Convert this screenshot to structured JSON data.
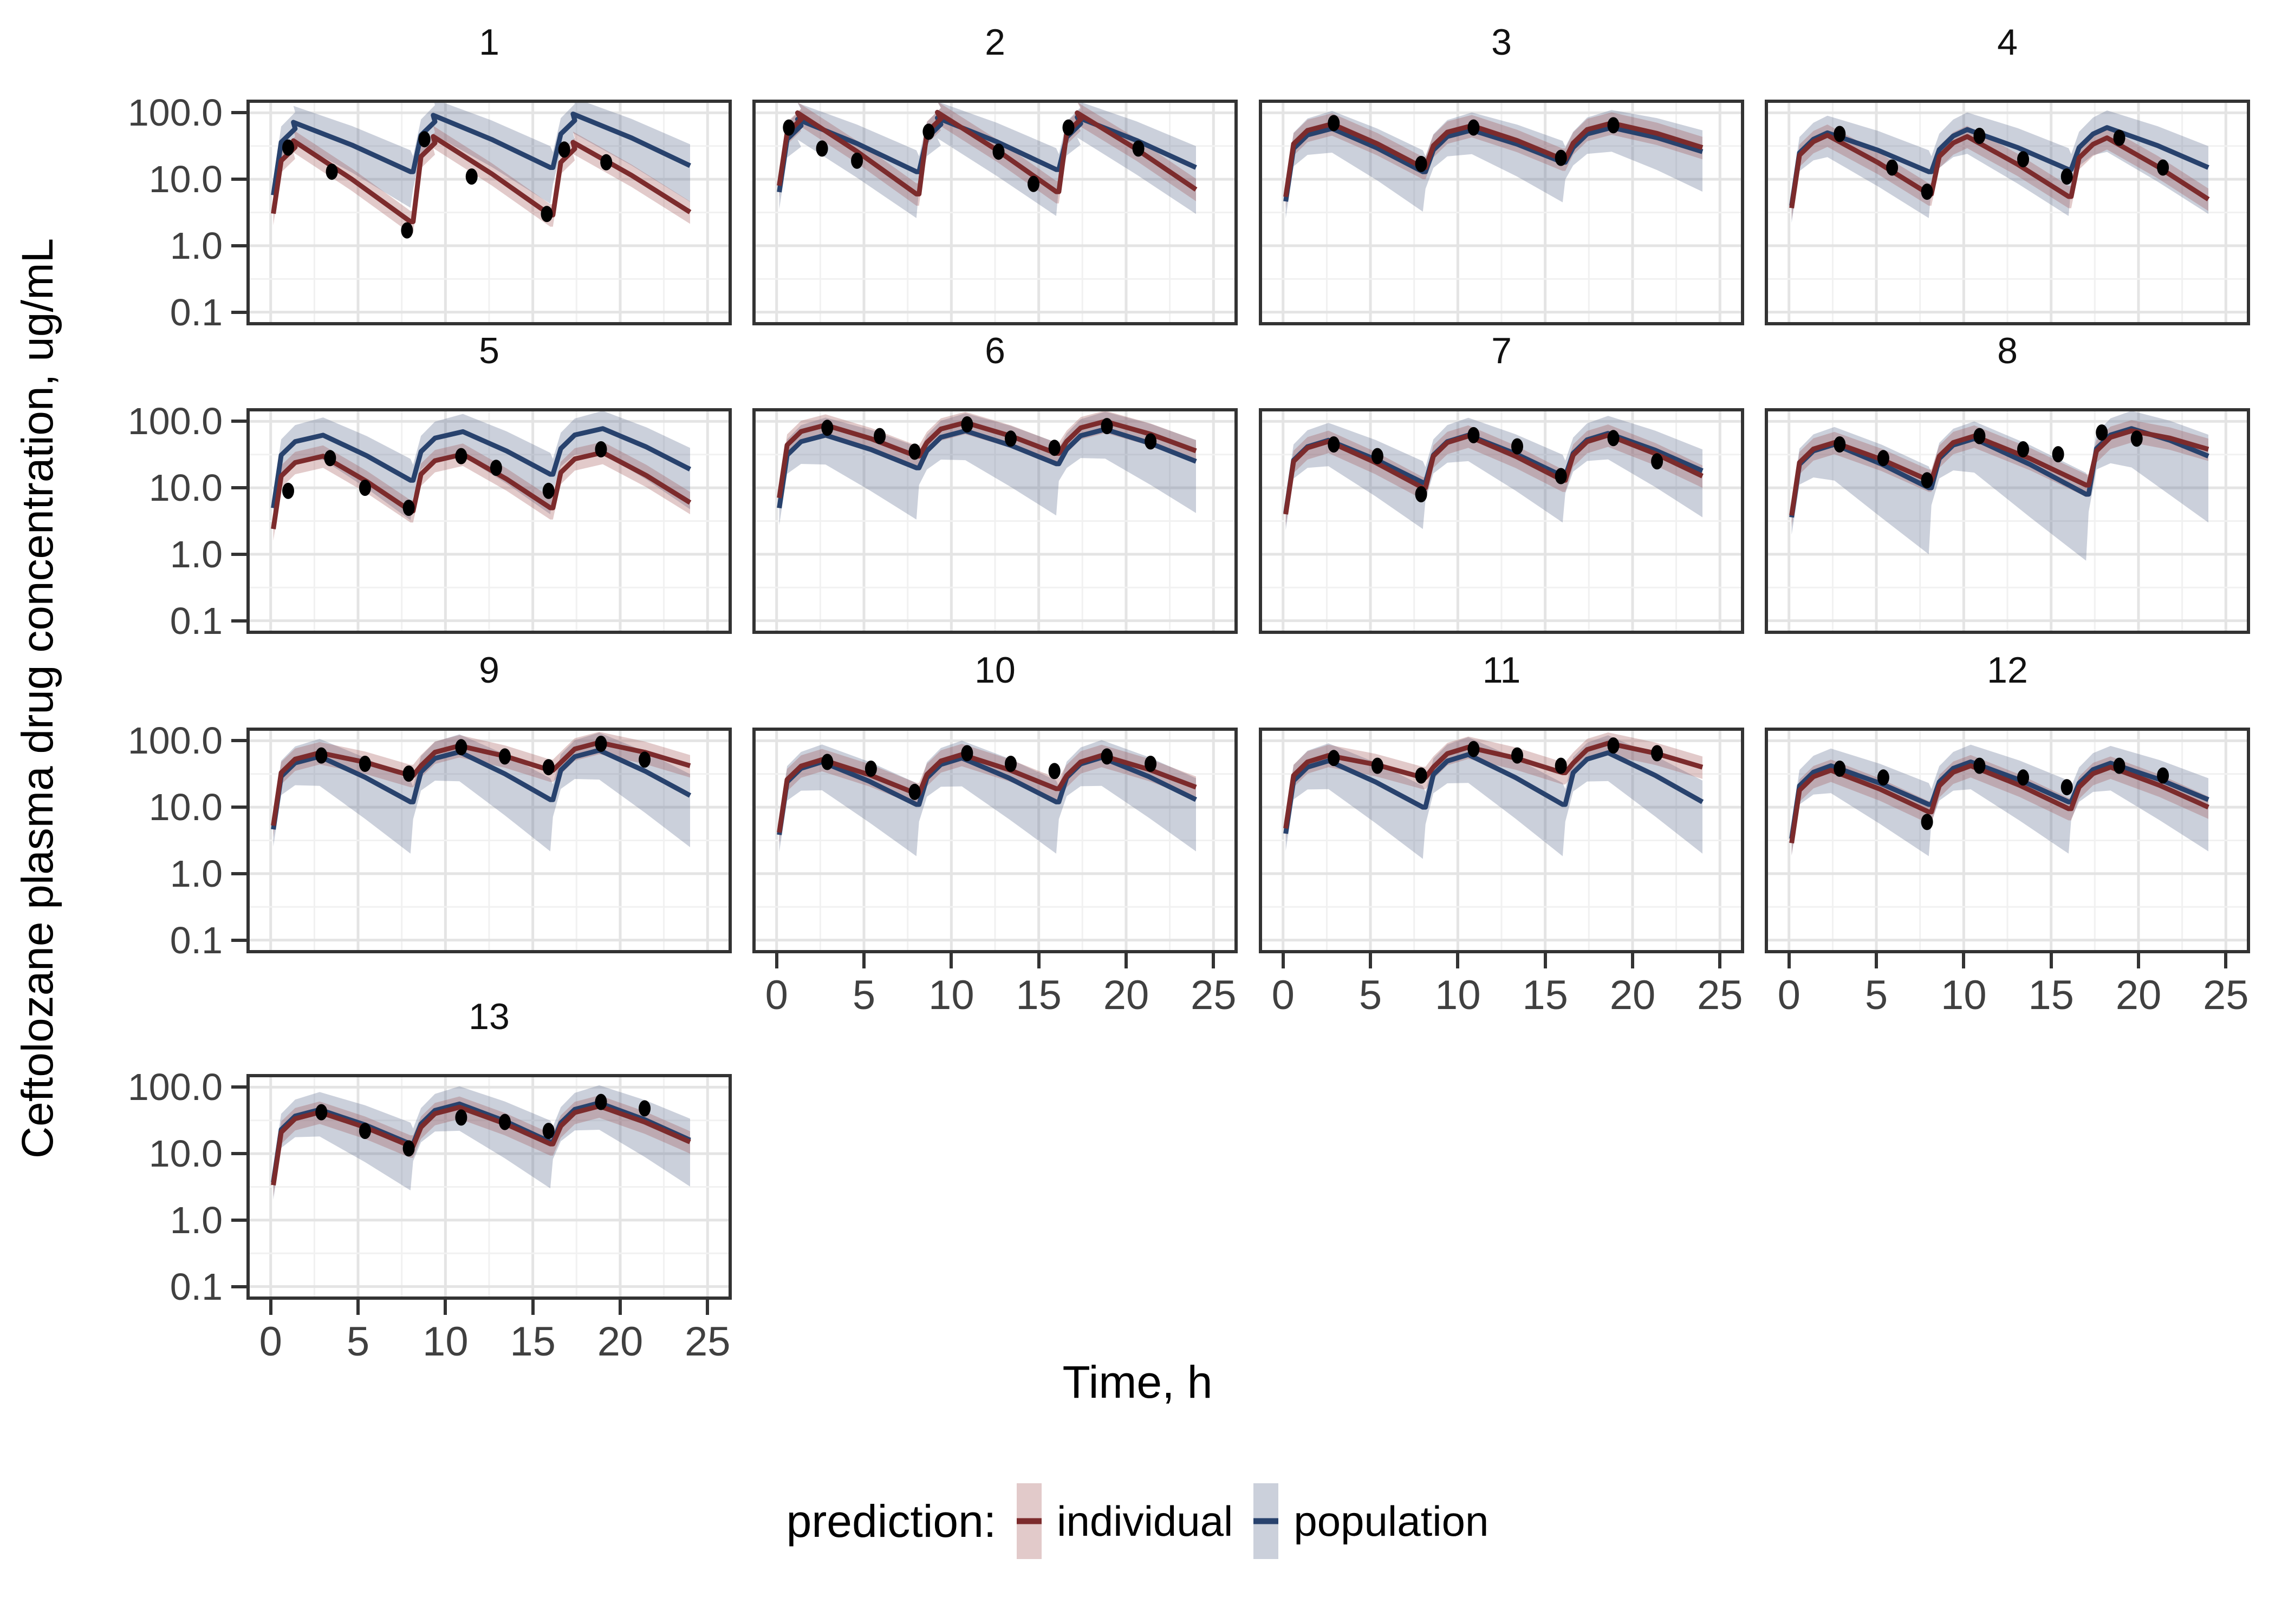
{
  "axes": {
    "x_label": "Time, h",
    "y_label": "Ceftolozane plasma drug concentration, ug/mL",
    "x_tick_values": [
      0,
      5,
      10,
      15,
      20,
      25
    ],
    "x_tick_labels": [
      "0",
      "5",
      "10",
      "15",
      "20",
      "25"
    ],
    "y_tick_values": [
      100,
      10,
      1,
      0.1
    ],
    "y_tick_labels": [
      "100.0",
      "10.0",
      "1.0",
      "0.1"
    ],
    "y_scale": "log10",
    "x_range": [
      0,
      25
    ],
    "y_range": [
      0.1,
      100
    ]
  },
  "legend": {
    "title": "prediction:",
    "items": [
      {
        "label": "individual",
        "line_color": "#7C2B2C",
        "fill_color": "#E4CCCC"
      },
      {
        "label": "population",
        "line_color": "#28426D",
        "fill_color": "#CBD2DD"
      }
    ]
  },
  "colors": {
    "individual_line": "#7C2B2C",
    "individual_fill": "rgba(159,80,80,0.30)",
    "population_line": "#28426D",
    "population_fill": "rgba(96,112,146,0.33)",
    "observation": "#000000",
    "grid_major": "#e4e4e4",
    "grid_minor": "#f1f1f1",
    "panel_border": "#333333",
    "tick_text": "#404040"
  },
  "chart_data": {
    "type": "line",
    "description": "Faceted pharmacokinetic profiles (log-scale concentration vs time) for 13 subjects; dark-red individual prediction with pink CI ribbon, navy population prediction with blue-gray CI ribbon, black dots are observations; repeated dosing causes sawtooth curves.",
    "grid": "on",
    "legend_position": "bottom",
    "facets": [
      {
        "id": "1",
        "doses": [
          0,
          8,
          16
        ],
        "t_end": 24,
        "peak_dt": 1.3,
        "individual": {
          "peaks": [
            38,
            44,
            36
          ],
          "troughs": [
            2.3,
            2.9,
            3.2
          ]
        },
        "population": {
          "peaks": [
            72,
            92,
            96
          ],
          "troughs": [
            13,
            15,
            16
          ],
          "lower_spread": 3.5
        },
        "observations": [
          [
            1,
            30
          ],
          [
            3.5,
            13
          ],
          [
            7.8,
            1.7
          ],
          [
            8.8,
            40
          ],
          [
            11.5,
            11
          ],
          [
            15.8,
            3
          ],
          [
            16.8,
            28
          ],
          [
            19.2,
            18
          ]
        ]
      },
      {
        "id": "2",
        "doses": [
          0,
          8,
          16
        ],
        "t_end": 24,
        "peak_dt": 1.2,
        "individual": {
          "peaks": [
            100,
            102,
            100
          ],
          "troughs": [
            6,
            6.5,
            7
          ]
        },
        "population": {
          "peaks": [
            80,
            84,
            86
          ],
          "troughs": [
            13,
            14,
            15
          ],
          "lower_spread": 5
        },
        "observations": [
          [
            0.7,
            60
          ],
          [
            2.6,
            29
          ],
          [
            4.6,
            19
          ],
          [
            8.7,
            52
          ],
          [
            12.7,
            26
          ],
          [
            14.7,
            8.5
          ],
          [
            16.7,
            60
          ],
          [
            20.7,
            29
          ]
        ]
      },
      {
        "id": "3",
        "doses": [
          0,
          8,
          16
        ],
        "t_end": 24,
        "peak_dt": 2.8,
        "individual": {
          "peaks": [
            68,
            64,
            70
          ],
          "troughs": [
            15,
            20,
            30
          ]
        },
        "population": {
          "peaks": [
            58,
            55,
            60
          ],
          "troughs": [
            13,
            18,
            26
          ],
          "lower_spread": 4
        },
        "observations": [
          [
            2.9,
            70
          ],
          [
            7.9,
            17
          ],
          [
            10.9,
            60
          ],
          [
            15.9,
            21
          ],
          [
            18.9,
            65
          ]
        ]
      },
      {
        "id": "4",
        "doses": [
          0,
          8,
          16
        ],
        "t_end": 24,
        "peak_dt": 2.2,
        "individual": {
          "peaks": [
            46,
            44,
            42
          ],
          "troughs": [
            6,
            5.5,
            5
          ]
        },
        "population": {
          "peaks": [
            50,
            56,
            60
          ],
          "troughs": [
            13,
            14,
            15
          ],
          "lower_spread": 5
        },
        "observations": [
          [
            2.9,
            48
          ],
          [
            5.9,
            15
          ],
          [
            7.9,
            6.5
          ],
          [
            10.9,
            45
          ],
          [
            13.4,
            20
          ],
          [
            15.9,
            11
          ],
          [
            18.9,
            42
          ],
          [
            21.4,
            15
          ]
        ]
      },
      {
        "id": "5",
        "doses": [
          0,
          8,
          16
        ],
        "t_end": 24,
        "peak_dt": 3.0,
        "individual": {
          "peaks": [
            30,
            32,
            34
          ],
          "troughs": [
            4.5,
            5,
            6
          ]
        },
        "population": {
          "peaks": [
            62,
            70,
            78
          ],
          "troughs": [
            13,
            16,
            19
          ],
          "lower_spread": 4
        },
        "observations": [
          [
            1,
            9
          ],
          [
            3.4,
            28
          ],
          [
            5.4,
            10
          ],
          [
            7.9,
            5
          ],
          [
            10.9,
            30
          ],
          [
            12.9,
            20
          ],
          [
            15.9,
            9
          ],
          [
            18.9,
            38
          ]
        ]
      },
      {
        "id": "6",
        "doses": [
          0,
          8,
          16
        ],
        "t_end": 24,
        "peak_dt": 2.8,
        "individual": {
          "peaks": [
            88,
            96,
            100
          ],
          "troughs": [
            30,
            33,
            36
          ]
        },
        "population": {
          "peaks": [
            62,
            72,
            76
          ],
          "troughs": [
            20,
            23,
            25
          ],
          "lower_spread": 6
        },
        "observations": [
          [
            2.9,
            80
          ],
          [
            5.9,
            60
          ],
          [
            7.9,
            35
          ],
          [
            10.9,
            90
          ],
          [
            13.4,
            55
          ],
          [
            15.9,
            40
          ],
          [
            18.9,
            85
          ],
          [
            21.4,
            50
          ]
        ]
      },
      {
        "id": "7",
        "doses": [
          0,
          8,
          16
        ],
        "t_end": 24,
        "peak_dt": 2.6,
        "individual": {
          "peaks": [
            50,
            60,
            62
          ],
          "troughs": [
            10,
            13,
            15
          ]
        },
        "population": {
          "peaks": [
            52,
            62,
            66
          ],
          "troughs": [
            12,
            15,
            18
          ],
          "lower_spread": 5
        },
        "observations": [
          [
            2.9,
            45
          ],
          [
            5.4,
            30
          ],
          [
            7.9,
            8
          ],
          [
            10.9,
            62
          ],
          [
            13.4,
            42
          ],
          [
            15.9,
            15
          ],
          [
            18.9,
            56
          ],
          [
            21.4,
            25
          ]
        ]
      },
      {
        "id": "8",
        "doses": [
          0,
          8,
          17
        ],
        "t_end": 24,
        "peak_dt": 2.6,
        "individual": {
          "peaks": [
            48,
            60,
            72
          ],
          "troughs": [
            13,
            11,
            38
          ]
        },
        "population": {
          "peaks": [
            45,
            55,
            78
          ],
          "troughs": [
            10,
            8,
            30
          ],
          "lower_spread": 10
        },
        "observations": [
          [
            2.9,
            45
          ],
          [
            5.4,
            28
          ],
          [
            7.9,
            13
          ],
          [
            10.9,
            60
          ],
          [
            13.4,
            38
          ],
          [
            15.4,
            32
          ],
          [
            17.9,
            68
          ],
          [
            19.9,
            55
          ]
        ]
      },
      {
        "id": "9",
        "doses": [
          0,
          8,
          16
        ],
        "t_end": 24,
        "peak_dt": 2.8,
        "individual": {
          "peaks": [
            66,
            84,
            94
          ],
          "troughs": [
            30,
            36,
            42
          ]
        },
        "population": {
          "peaks": [
            58,
            68,
            72
          ],
          "troughs": [
            12,
            13,
            15
          ],
          "lower_spread": 6
        },
        "observations": [
          [
            2.9,
            60
          ],
          [
            5.4,
            45
          ],
          [
            7.9,
            32
          ],
          [
            10.9,
            80
          ],
          [
            13.4,
            58
          ],
          [
            15.9,
            40
          ],
          [
            18.9,
            90
          ],
          [
            21.4,
            52
          ]
        ]
      },
      {
        "id": "10",
        "doses": [
          0,
          8,
          16
        ],
        "t_end": 24,
        "peak_dt": 2.6,
        "individual": {
          "peaks": [
            52,
            62,
            60
          ],
          "troughs": [
            16,
            19,
            20
          ]
        },
        "population": {
          "peaks": [
            48,
            55,
            56
          ],
          "troughs": [
            11,
            12,
            13
          ],
          "lower_spread": 6
        },
        "observations": [
          [
            2.9,
            48
          ],
          [
            5.4,
            38
          ],
          [
            7.9,
            17
          ],
          [
            10.9,
            65
          ],
          [
            13.4,
            45
          ],
          [
            15.9,
            35
          ],
          [
            18.9,
            58
          ],
          [
            21.4,
            45
          ]
        ]
      },
      {
        "id": "11",
        "doses": [
          0,
          8,
          16
        ],
        "t_end": 24,
        "peak_dt": 2.6,
        "individual": {
          "peaks": [
            60,
            80,
            92
          ],
          "troughs": [
            28,
            33,
            40
          ]
        },
        "population": {
          "peaks": [
            50,
            62,
            66
          ],
          "troughs": [
            10,
            11,
            12
          ],
          "lower_spread": 6
        },
        "observations": [
          [
            2.9,
            55
          ],
          [
            5.4,
            42
          ],
          [
            7.9,
            30
          ],
          [
            10.9,
            75
          ],
          [
            13.4,
            60
          ],
          [
            15.9,
            42
          ],
          [
            18.9,
            85
          ],
          [
            21.4,
            65
          ]
        ]
      },
      {
        "id": "12",
        "doses": [
          0,
          8,
          16
        ],
        "t_end": 24,
        "peak_dt": 2.4,
        "individual": {
          "peaks": [
            36,
            42,
            40
          ],
          "troughs": [
            8.5,
            9.5,
            10
          ]
        },
        "population": {
          "peaks": [
            42,
            48,
            46
          ],
          "troughs": [
            11,
            12,
            13
          ],
          "lower_spread": 6
        },
        "observations": [
          [
            2.9,
            38
          ],
          [
            5.4,
            28
          ],
          [
            7.9,
            6
          ],
          [
            10.9,
            42
          ],
          [
            13.4,
            28
          ],
          [
            15.9,
            20
          ],
          [
            18.9,
            42
          ],
          [
            21.4,
            30
          ]
        ]
      },
      {
        "id": "13",
        "doses": [
          0,
          8,
          16
        ],
        "t_end": 24,
        "peak_dt": 2.8,
        "individual": {
          "peaks": [
            42,
            50,
            52
          ],
          "troughs": [
            13,
            14,
            15
          ]
        },
        "population": {
          "peaks": [
            46,
            56,
            58
          ],
          "troughs": [
            14,
            15,
            16
          ],
          "lower_spread": 5
        },
        "observations": [
          [
            2.9,
            42
          ],
          [
            5.4,
            22
          ],
          [
            7.9,
            12
          ],
          [
            10.9,
            35
          ],
          [
            13.4,
            30
          ],
          [
            15.9,
            22
          ],
          [
            18.9,
            60
          ],
          [
            21.4,
            48
          ]
        ]
      }
    ]
  }
}
